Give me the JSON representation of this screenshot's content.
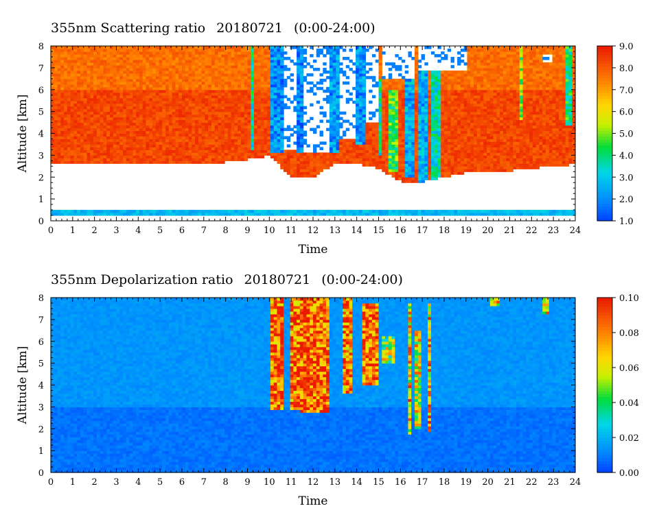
{
  "chart_data": [
    {
      "type": "heatmap",
      "title": "355nm Scattering ratio",
      "date": "20180721",
      "time_range": "(0:00-24:00)",
      "xlabel": "Time",
      "ylabel": "Altitude [km]",
      "xlim": [
        0,
        24
      ],
      "ylim": [
        0,
        8
      ],
      "x_ticks": [
        "0",
        "1",
        "2",
        "3",
        "4",
        "5",
        "6",
        "7",
        "8",
        "9",
        "10",
        "11",
        "12",
        "13",
        "14",
        "15",
        "16",
        "17",
        "18",
        "19",
        "20",
        "21",
        "22",
        "23",
        "24"
      ],
      "y_ticks": [
        "0",
        "1",
        "2",
        "3",
        "4",
        "5",
        "6",
        "7",
        "8"
      ],
      "colorbar": {
        "min": 1.0,
        "max": 9.0,
        "ticks": [
          "1.0",
          "2.0",
          "3.0",
          "4.0",
          "5.0",
          "6.0",
          "7.0",
          "8.0",
          "9.0"
        ]
      },
      "background_value": 8.3,
      "low_band": {
        "altitude": [
          0.2,
          0.5
        ]
      },
      "cloud_base_km": [
        [
          0,
          2.6
        ],
        [
          1,
          2.6
        ],
        [
          2,
          2.6
        ],
        [
          3,
          2.6
        ],
        [
          4,
          2.6
        ],
        [
          5,
          2.6
        ],
        [
          6,
          2.6
        ],
        [
          7,
          2.6
        ],
        [
          8,
          2.7
        ],
        [
          9,
          2.8
        ],
        [
          10,
          3.0
        ],
        [
          11,
          2.0
        ],
        [
          12,
          2.0
        ],
        [
          13,
          2.6
        ],
        [
          14,
          2.6
        ],
        [
          15,
          2.4
        ],
        [
          16,
          1.8
        ],
        [
          17,
          1.8
        ],
        [
          18,
          2.0
        ],
        [
          19,
          2.2
        ],
        [
          20,
          2.3
        ],
        [
          21,
          2.3
        ],
        [
          22,
          2.4
        ],
        [
          23,
          2.5
        ],
        [
          24,
          2.6
        ]
      ],
      "clear_regions": [
        {
          "t": [
            10.6,
            11.2
          ],
          "alt": [
            3.2,
            8
          ]
        },
        {
          "t": [
            11.6,
            12.8
          ],
          "alt": [
            3.1,
            8
          ]
        },
        {
          "t": [
            13.2,
            13.9
          ],
          "alt": [
            3.8,
            8
          ]
        },
        {
          "t": [
            14.4,
            15.0
          ],
          "alt": [
            4.5,
            8
          ]
        },
        {
          "t": [
            15.1,
            16.6
          ],
          "alt": [
            6.5,
            8
          ]
        },
        {
          "t": [
            16.8,
            19.0
          ],
          "alt": [
            6.9,
            8
          ]
        },
        {
          "t": [
            22.5,
            23.0
          ],
          "alt": [
            7.2,
            7.6
          ]
        }
      ],
      "low_ratio_columns": [
        {
          "t": [
            9.1,
            9.3
          ],
          "alt": [
            3.3,
            8
          ],
          "value": 3.5
        },
        {
          "t": [
            10.0,
            10.6
          ],
          "alt": [
            3.1,
            8
          ],
          "value": 2.0
        },
        {
          "t": [
            11.2,
            11.6
          ],
          "alt": [
            3.1,
            8
          ],
          "value": 2.0
        },
        {
          "t": [
            12.8,
            13.2
          ],
          "alt": [
            3.1,
            8
          ],
          "value": 2.2
        },
        {
          "t": [
            13.9,
            14.4
          ],
          "alt": [
            3.5,
            8
          ],
          "value": 2.2
        },
        {
          "t": [
            15.0,
            15.2
          ],
          "alt": [
            3.0,
            6.5
          ],
          "value": 3.5
        },
        {
          "t": [
            15.5,
            15.9
          ],
          "alt": [
            2.3,
            6.0
          ],
          "value": 4.5
        },
        {
          "t": [
            16.2,
            16.6
          ],
          "alt": [
            2.0,
            7.0
          ],
          "value": 2.5
        },
        {
          "t": [
            16.8,
            17.3
          ],
          "alt": [
            1.8,
            7.0
          ],
          "value": 2.5
        },
        {
          "t": [
            17.4,
            17.8
          ],
          "alt": [
            1.8,
            7.0
          ],
          "value": 3.5
        },
        {
          "t": [
            21.4,
            21.6
          ],
          "alt": [
            4.6,
            8
          ],
          "value": 5.0
        },
        {
          "t": [
            23.6,
            23.8
          ],
          "alt": [
            4.4,
            8
          ],
          "value": 4.0
        }
      ]
    },
    {
      "type": "heatmap",
      "title": "355nm Depolarization ratio",
      "date": "20180721",
      "time_range": "(0:00-24:00)",
      "xlabel": "Time",
      "ylabel": "Altitude [km]",
      "xlim": [
        0,
        24
      ],
      "ylim": [
        0,
        8
      ],
      "x_ticks": [
        "0",
        "1",
        "2",
        "3",
        "4",
        "5",
        "6",
        "7",
        "8",
        "9",
        "10",
        "11",
        "12",
        "13",
        "14",
        "15",
        "16",
        "17",
        "18",
        "19",
        "20",
        "21",
        "22",
        "23",
        "24"
      ],
      "y_ticks": [
        "0",
        "1",
        "2",
        "3",
        "4",
        "5",
        "6",
        "7",
        "8"
      ],
      "colorbar": {
        "min": 0.0,
        "max": 0.1,
        "ticks": [
          "0.00",
          "0.02",
          "0.04",
          "0.06",
          "0.08",
          "0.10"
        ]
      },
      "background_value": 0.008,
      "upper_background_value": 0.014,
      "high_depol_regions": [
        {
          "t": [
            10.0,
            10.6
          ],
          "alt": [
            2.9,
            8
          ],
          "value": 0.085
        },
        {
          "t": [
            10.9,
            11.4
          ],
          "alt": [
            2.9,
            8
          ],
          "value": 0.085
        },
        {
          "t": [
            11.4,
            12.8
          ],
          "alt": [
            2.8,
            8
          ],
          "value": 0.09
        },
        {
          "t": [
            13.4,
            13.8
          ],
          "alt": [
            3.6,
            8
          ],
          "value": 0.08
        },
        {
          "t": [
            14.3,
            15.0
          ],
          "alt": [
            4.0,
            7.8
          ],
          "value": 0.085
        },
        {
          "t": [
            15.1,
            15.8
          ],
          "alt": [
            5.0,
            6.2
          ],
          "value": 0.05
        },
        {
          "t": [
            16.3,
            16.5
          ],
          "alt": [
            1.8,
            7.8
          ],
          "value": 0.07
        },
        {
          "t": [
            16.7,
            16.9
          ],
          "alt": [
            2.0,
            6.5
          ],
          "value": 0.06
        },
        {
          "t": [
            17.2,
            17.4
          ],
          "alt": [
            1.9,
            7.8
          ],
          "value": 0.075
        },
        {
          "t": [
            20.1,
            20.6
          ],
          "alt": [
            7.6,
            8
          ],
          "value": 0.07
        },
        {
          "t": [
            22.5,
            22.8
          ],
          "alt": [
            7.2,
            8
          ],
          "value": 0.07
        }
      ]
    }
  ]
}
